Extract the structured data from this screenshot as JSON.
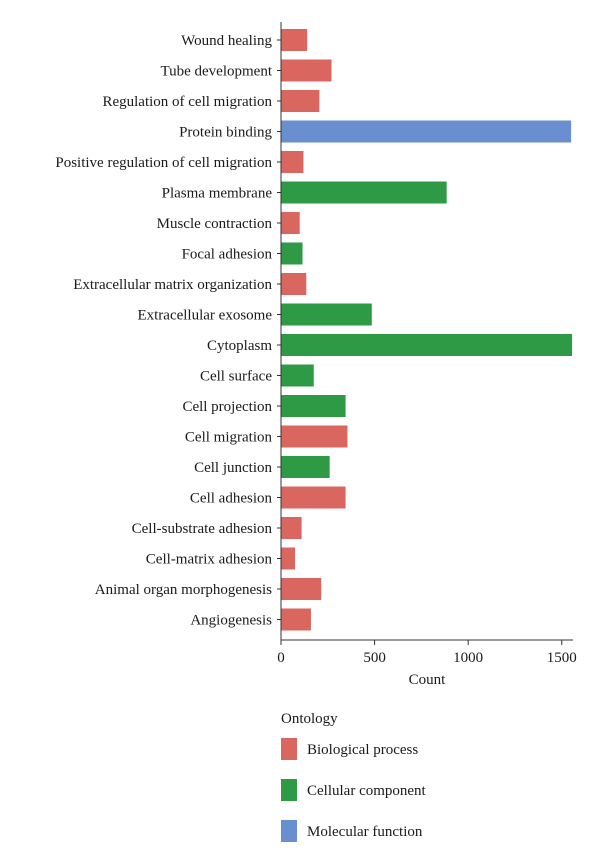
{
  "chart_data": {
    "type": "bar",
    "orientation": "horizontal",
    "xlabel": "Count",
    "ylabel": "",
    "xlim": [
      0,
      1560
    ],
    "xticks": [
      0,
      500,
      1000,
      1500
    ],
    "grid": false,
    "legend_position": "bottom-left",
    "legend_title": "Ontology",
    "legend": [
      {
        "name": "Biological process",
        "color": "#d9665f"
      },
      {
        "name": "Cellular component",
        "color": "#2f9a45"
      },
      {
        "name": "Molecular function",
        "color": "#6a8fd0"
      }
    ],
    "bars": [
      {
        "category": "Wound healing",
        "value": 140,
        "group": "Biological process"
      },
      {
        "category": "Tube development",
        "value": 270,
        "group": "Biological process"
      },
      {
        "category": "Regulation of cell migration",
        "value": 205,
        "group": "Biological process"
      },
      {
        "category": "Protein binding",
        "value": 1550,
        "group": "Molecular function"
      },
      {
        "category": "Positive regulation of cell migration",
        "value": 120,
        "group": "Biological process"
      },
      {
        "category": "Plasma membrane",
        "value": 885,
        "group": "Cellular component"
      },
      {
        "category": "Muscle contraction",
        "value": 100,
        "group": "Biological process"
      },
      {
        "category": "Focal adhesion",
        "value": 115,
        "group": "Cellular component"
      },
      {
        "category": "Extracellular matrix organization",
        "value": 135,
        "group": "Biological process"
      },
      {
        "category": "Extracellular exosome",
        "value": 485,
        "group": "Cellular component"
      },
      {
        "category": "Cytoplasm",
        "value": 1555,
        "group": "Cellular component"
      },
      {
        "category": "Cell surface",
        "value": 175,
        "group": "Cellular component"
      },
      {
        "category": "Cell projection",
        "value": 345,
        "group": "Cellular component"
      },
      {
        "category": "Cell migration",
        "value": 355,
        "group": "Biological process"
      },
      {
        "category": "Cell junction",
        "value": 260,
        "group": "Cellular component"
      },
      {
        "category": "Cell adhesion",
        "value": 345,
        "group": "Biological process"
      },
      {
        "category": "Cell-substrate adhesion",
        "value": 110,
        "group": "Biological process"
      },
      {
        "category": "Cell-matrix adhesion",
        "value": 75,
        "group": "Biological process"
      },
      {
        "category": "Animal organ morphogenesis",
        "value": 215,
        "group": "Biological process"
      },
      {
        "category": "Angiogenesis",
        "value": 160,
        "group": "Biological process"
      }
    ]
  }
}
